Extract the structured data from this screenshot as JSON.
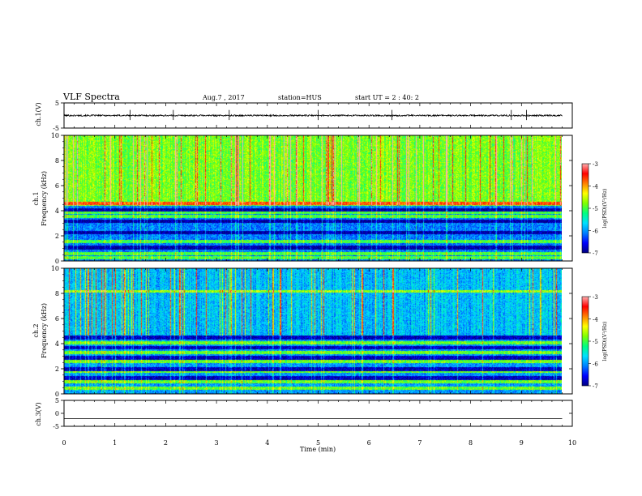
{
  "header": {
    "title": "VLF Spectra",
    "date": "Aug.7 , 2017",
    "station": "station=HUS",
    "start": "start UT = 2 : 40: 2"
  },
  "chart_data": [
    {
      "type": "line",
      "name": "ch1-waveform",
      "ylabel": "ch.1(V)",
      "ylim": [
        -5,
        5
      ],
      "yticks": [
        "5",
        "-5"
      ],
      "xlim": [
        0,
        9.8
      ],
      "baseline": 0,
      "amplitude": 0.3,
      "spikes_t": [
        1.3,
        2.15,
        3.25,
        5.0,
        6.45,
        8.8,
        9.1
      ]
    },
    {
      "type": "heatmap",
      "name": "ch1-spectrogram",
      "ylabel_line1": "ch.1",
      "ylabel_line2": "Frequency (kHz)",
      "ylim": [
        0,
        10
      ],
      "yticks": [
        "0",
        "2",
        "4",
        "6",
        "8",
        "10"
      ],
      "xlim": [
        0,
        9.8
      ],
      "upper_band_khz": [
        4.4,
        10
      ],
      "upper_level": 0.55,
      "lower_level": 0.22,
      "bright_lines_khz": [
        0.3,
        0.6,
        1.6,
        3.6,
        3.9,
        4.6
      ],
      "dark_gaps_khz": [
        4.1,
        3.2,
        2.3,
        1.1
      ],
      "noise_seed": 7
    },
    {
      "type": "heatmap",
      "name": "ch2-spectrogram",
      "ylabel_line1": "ch.2",
      "ylabel_line2": "Frequency (kHz)",
      "ylim": [
        0,
        10
      ],
      "yticks": [
        "0",
        "2",
        "4",
        "6",
        "8",
        "10"
      ],
      "xlim": [
        0,
        9.8
      ],
      "upper_band_khz": [
        4.7,
        10
      ],
      "upper_level": 0.3,
      "lower_level": 0.25,
      "bright_lines_khz": [
        0.5,
        1.0,
        1.8,
        2.6,
        3.3,
        4.1,
        8.2
      ],
      "dark_gaps_khz": [
        4.5,
        3.7,
        2.9,
        2.0,
        1.3
      ],
      "noise_seed": 23
    },
    {
      "type": "line",
      "name": "ch3-waveform",
      "ylabel": "ch.3(V)",
      "ylim": [
        -5,
        5
      ],
      "yticks": [
        "5",
        "0",
        "-5"
      ],
      "xlim": [
        0,
        9.8
      ],
      "baseline": -2,
      "amplitude": 0,
      "spikes_t": []
    }
  ],
  "xaxis": {
    "label": "Time (min)",
    "ticks": [
      "0",
      "1",
      "2",
      "3",
      "4",
      "5",
      "6",
      "7",
      "8",
      "9",
      "10"
    ],
    "range": [
      0,
      10
    ]
  },
  "colorbar": {
    "label": "log(PSD)(V²/Hz)",
    "ticks": [
      "-3",
      "-4",
      "-5",
      "-6",
      "-7"
    ],
    "range": [
      -7,
      -3
    ]
  },
  "colors": {
    "axes": "#000000",
    "background": "#ffffff",
    "colormap": [
      "#000080",
      "#0000ff",
      "#0080ff",
      "#00e0ff",
      "#00ff80",
      "#80ff00",
      "#ffff00",
      "#ff8000",
      "#ff0000",
      "#ffb0b0"
    ]
  }
}
